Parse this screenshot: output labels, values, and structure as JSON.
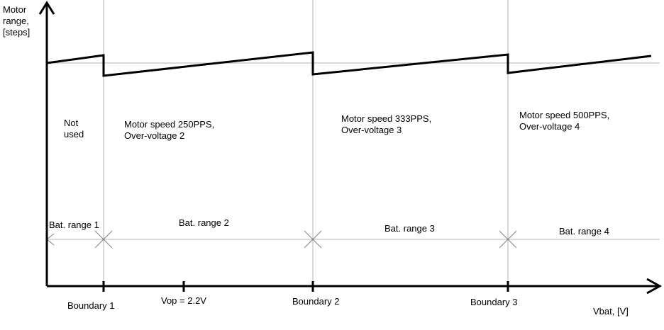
{
  "axes": {
    "y_label": "Motor\nrange,\n[steps]",
    "x_label": "Vbat, [V]"
  },
  "regions": [
    {
      "text": "Not\nused"
    },
    {
      "text": "Motor speed 250PPS,\nOver-voltage 2"
    },
    {
      "text": "Motor speed 333PPS,\nOver-voltage 3"
    },
    {
      "text": "Motor speed 500PPS,\nOver-voltage 4"
    }
  ],
  "battery_ranges": [
    "Bat. range 1",
    "Bat. range 2",
    "Bat. range 3",
    "Bat. range 4"
  ],
  "x_ticks": [
    "Boundary 1",
    "Vop = 2.2V",
    "Boundary 2",
    "Boundary 3"
  ],
  "colors": {
    "line": "#000000",
    "guide": "#b4b4b4",
    "background": "#ffffff"
  }
}
